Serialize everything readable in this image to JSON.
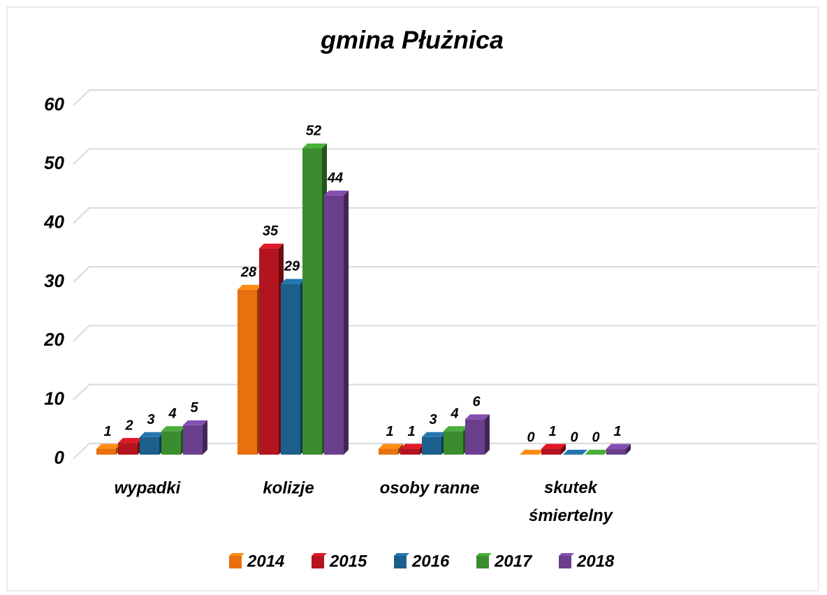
{
  "chart_data": {
    "type": "bar3d",
    "title": "gmina Płużnica",
    "categories": [
      "wypadki",
      "kolizje",
      "osoby ranne",
      "skutek śmiertelny"
    ],
    "series": [
      {
        "name": "2014",
        "color": "#e8700e",
        "values": [
          1,
          28,
          1,
          0
        ]
      },
      {
        "name": "2015",
        "color": "#b3141f",
        "values": [
          2,
          35,
          1,
          1
        ]
      },
      {
        "name": "2016",
        "color": "#1d5f8c",
        "values": [
          3,
          29,
          3,
          0
        ]
      },
      {
        "name": "2017",
        "color": "#3b8c2f",
        "values": [
          4,
          52,
          4,
          0
        ]
      },
      {
        "name": "2018",
        "color": "#6b3f8e",
        "values": [
          5,
          44,
          6,
          1
        ]
      }
    ],
    "ylim": [
      0,
      60
    ],
    "yticks": [
      0,
      10,
      20,
      30,
      40,
      50,
      60
    ],
    "grid": true,
    "legend": "bottom"
  }
}
